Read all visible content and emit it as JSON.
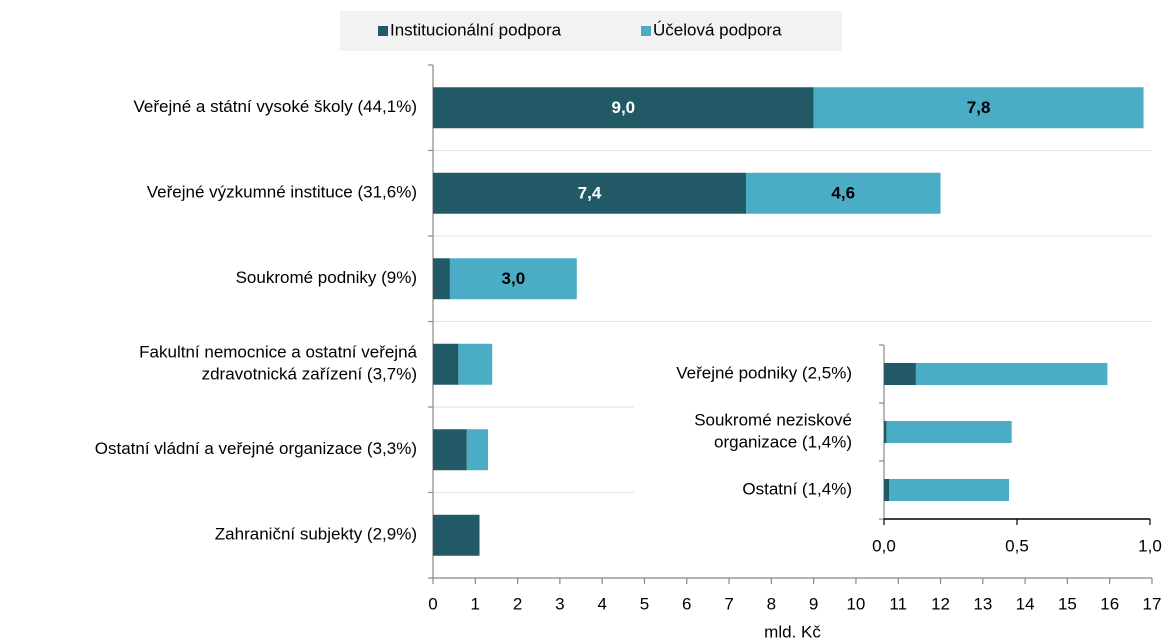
{
  "chart_data": [
    {
      "type": "bar",
      "orientation": "horizontal",
      "stacked": true,
      "categories": [
        [
          "Veřejné a státní vysoké školy (44,1%)"
        ],
        [
          "Veřejné výzkumné instituce (31,6%)"
        ],
        [
          "Soukromé podniky (9%)"
        ],
        [
          "Fakultní nemocnice a ostatní veřejná",
          "zdravotnická zařízení (3,7%)"
        ],
        [
          "Ostatní vládní a veřejné organizace (3,3%)"
        ],
        [
          "Zahraniční subjekty (2,9%)"
        ]
      ],
      "series": [
        {
          "name": "Institucionální podpora",
          "color": "#215967",
          "values": [
            9.0,
            7.4,
            0.4,
            0.6,
            0.8,
            1.1
          ],
          "value_labels": [
            "9,0",
            "7,4",
            null,
            null,
            null,
            null
          ]
        },
        {
          "name": "Účelová podpora",
          "color": "#4bacc6",
          "values": [
            7.8,
            4.6,
            3.0,
            0.8,
            0.5,
            0
          ],
          "value_labels": [
            "7,8",
            "4,6",
            "3,0",
            null,
            null,
            null
          ]
        }
      ],
      "xlabel": "mld. Kč",
      "xlim": [
        0,
        17
      ],
      "xticks": [
        0,
        1,
        2,
        3,
        4,
        5,
        6,
        7,
        8,
        9,
        10,
        11,
        12,
        13,
        14,
        15,
        16,
        17
      ],
      "legend": "top",
      "grid": true
    },
    {
      "type": "bar",
      "orientation": "horizontal",
      "stacked": true,
      "categories": [
        [
          "Veřejné podniky (2,5%)"
        ],
        [
          "Soukromé neziskové",
          "organizace (1,4%)"
        ],
        [
          "Ostatní (1,4%)"
        ]
      ],
      "series": [
        {
          "name": "Institucionální podpora",
          "color": "#215967",
          "values": [
            0.12,
            0.01,
            0.02
          ]
        },
        {
          "name": "Účelová podpora",
          "color": "#4bacc6",
          "values": [
            0.72,
            0.47,
            0.45
          ]
        }
      ],
      "xlim": [
        0,
        1
      ],
      "xticks": [
        {
          "value": 0,
          "label": "0,0"
        },
        {
          "value": 0.5,
          "label": "0,5"
        },
        {
          "value": 1,
          "label": "1,0"
        }
      ]
    }
  ]
}
